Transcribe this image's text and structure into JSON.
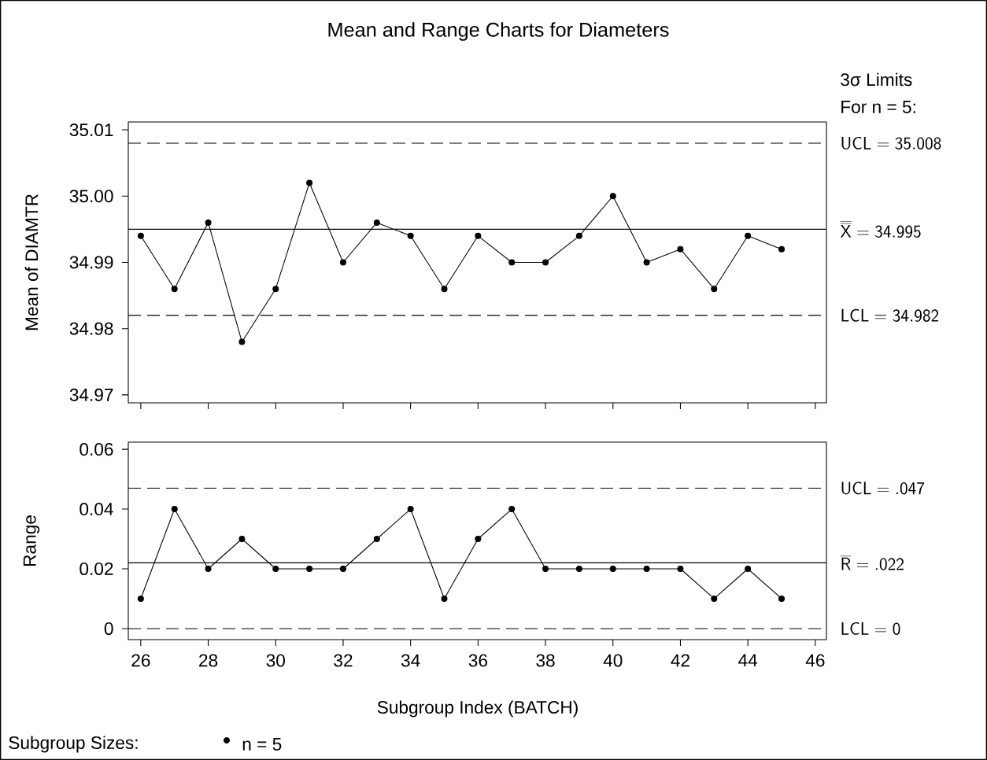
{
  "chart_data": [
    {
      "type": "line",
      "title": "Mean and Range Charts for Diameters",
      "ylabel": "Mean of DIAMTR",
      "x": [
        26,
        27,
        28,
        29,
        30,
        31,
        32,
        33,
        34,
        35,
        36,
        37,
        38,
        39,
        40,
        41,
        42,
        43,
        44,
        45
      ],
      "series": [
        {
          "color": "#000000",
          "values": [
            34.994,
            34.986,
            34.996,
            34.978,
            34.986,
            35.002,
            34.99,
            34.996,
            34.994,
            34.986,
            34.994,
            34.99,
            34.99,
            34.994,
            35.0,
            34.99,
            34.992,
            34.986,
            34.994,
            34.992
          ]
        }
      ],
      "marker": "circle",
      "line_style": "solid",
      "xlim": [
        25.63,
        46.33
      ],
      "xticks": [
        26,
        28,
        30,
        32,
        34,
        36,
        38,
        40,
        42,
        44,
        46
      ],
      "ylim": [
        34.9688,
        35.0112
      ],
      "yticks": [
        34.97,
        34.98,
        34.99,
        {
          "value": 35.0,
          "label": "35.00"
        },
        35.01
      ],
      "tick_labels": "y",
      "ref_lines": [
        {
          "axis": "y",
          "value": 35.008,
          "label": "\\mathsf{UCL}=\\mathsf{35.008}",
          "color": "#000000",
          "line_style": "dashed"
        },
        {
          "axis": "y",
          "value": 34.995,
          "label": "\\overline{\\overline{\\mathsf{X}}}=\\mathsf{34.995}",
          "color": "#000000",
          "line_style": "solid"
        },
        {
          "axis": "y",
          "value": 34.982,
          "label": "\\mathsf{LCL}=\\mathsf{34.982}",
          "color": "#000000",
          "line_style": "dashed"
        }
      ],
      "annotations": [
        "3σ  Limits",
        "For  n = 5:"
      ]
    },
    {
      "type": "line",
      "ylabel": "Range",
      "xlabel": "Subgroup Index (BATCH)",
      "x": [
        26,
        27,
        28,
        29,
        30,
        31,
        32,
        33,
        34,
        35,
        36,
        37,
        38,
        39,
        40,
        41,
        42,
        43,
        44,
        45
      ],
      "series": [
        {
          "color": "#000000",
          "values": [
            0.01,
            0.04,
            0.02,
            0.03,
            0.02,
            0.02,
            0.02,
            0.03,
            0.04,
            0.01,
            0.03,
            0.04,
            0.02,
            0.02,
            0.02,
            0.02,
            0.02,
            0.01,
            0.02,
            0.01
          ]
        }
      ],
      "marker": "circle",
      "line_style": "solid",
      "xlim": [
        25.63,
        46.33
      ],
      "xticks": [
        26,
        28,
        30,
        32,
        34,
        36,
        38,
        40,
        42,
        44,
        46
      ],
      "ylim": [
        -0.0037,
        0.0624
      ],
      "yticks": [
        0,
        0.02,
        0.04,
        0.06
      ],
      "ref_lines": [
        {
          "axis": "y",
          "value": 0.047,
          "label": "\\mathsf{UCL}=\\mathsf{.047}",
          "color": "#000000",
          "line_style": "dashed"
        },
        {
          "axis": "y",
          "value": 0.022,
          "label": "\\overline{\\mathsf{R}}=\\mathsf{.022}",
          "color": "#000000",
          "line_style": "solid"
        },
        {
          "axis": "y",
          "value": 0,
          "label": "\\mathsf{LCL}=\\mathsf{0}",
          "color": "#000000",
          "line_style": "dashed"
        }
      ],
      "annotations": [
        "Subgroup Sizes:",
        "n = 5"
      ]
    }
  ]
}
